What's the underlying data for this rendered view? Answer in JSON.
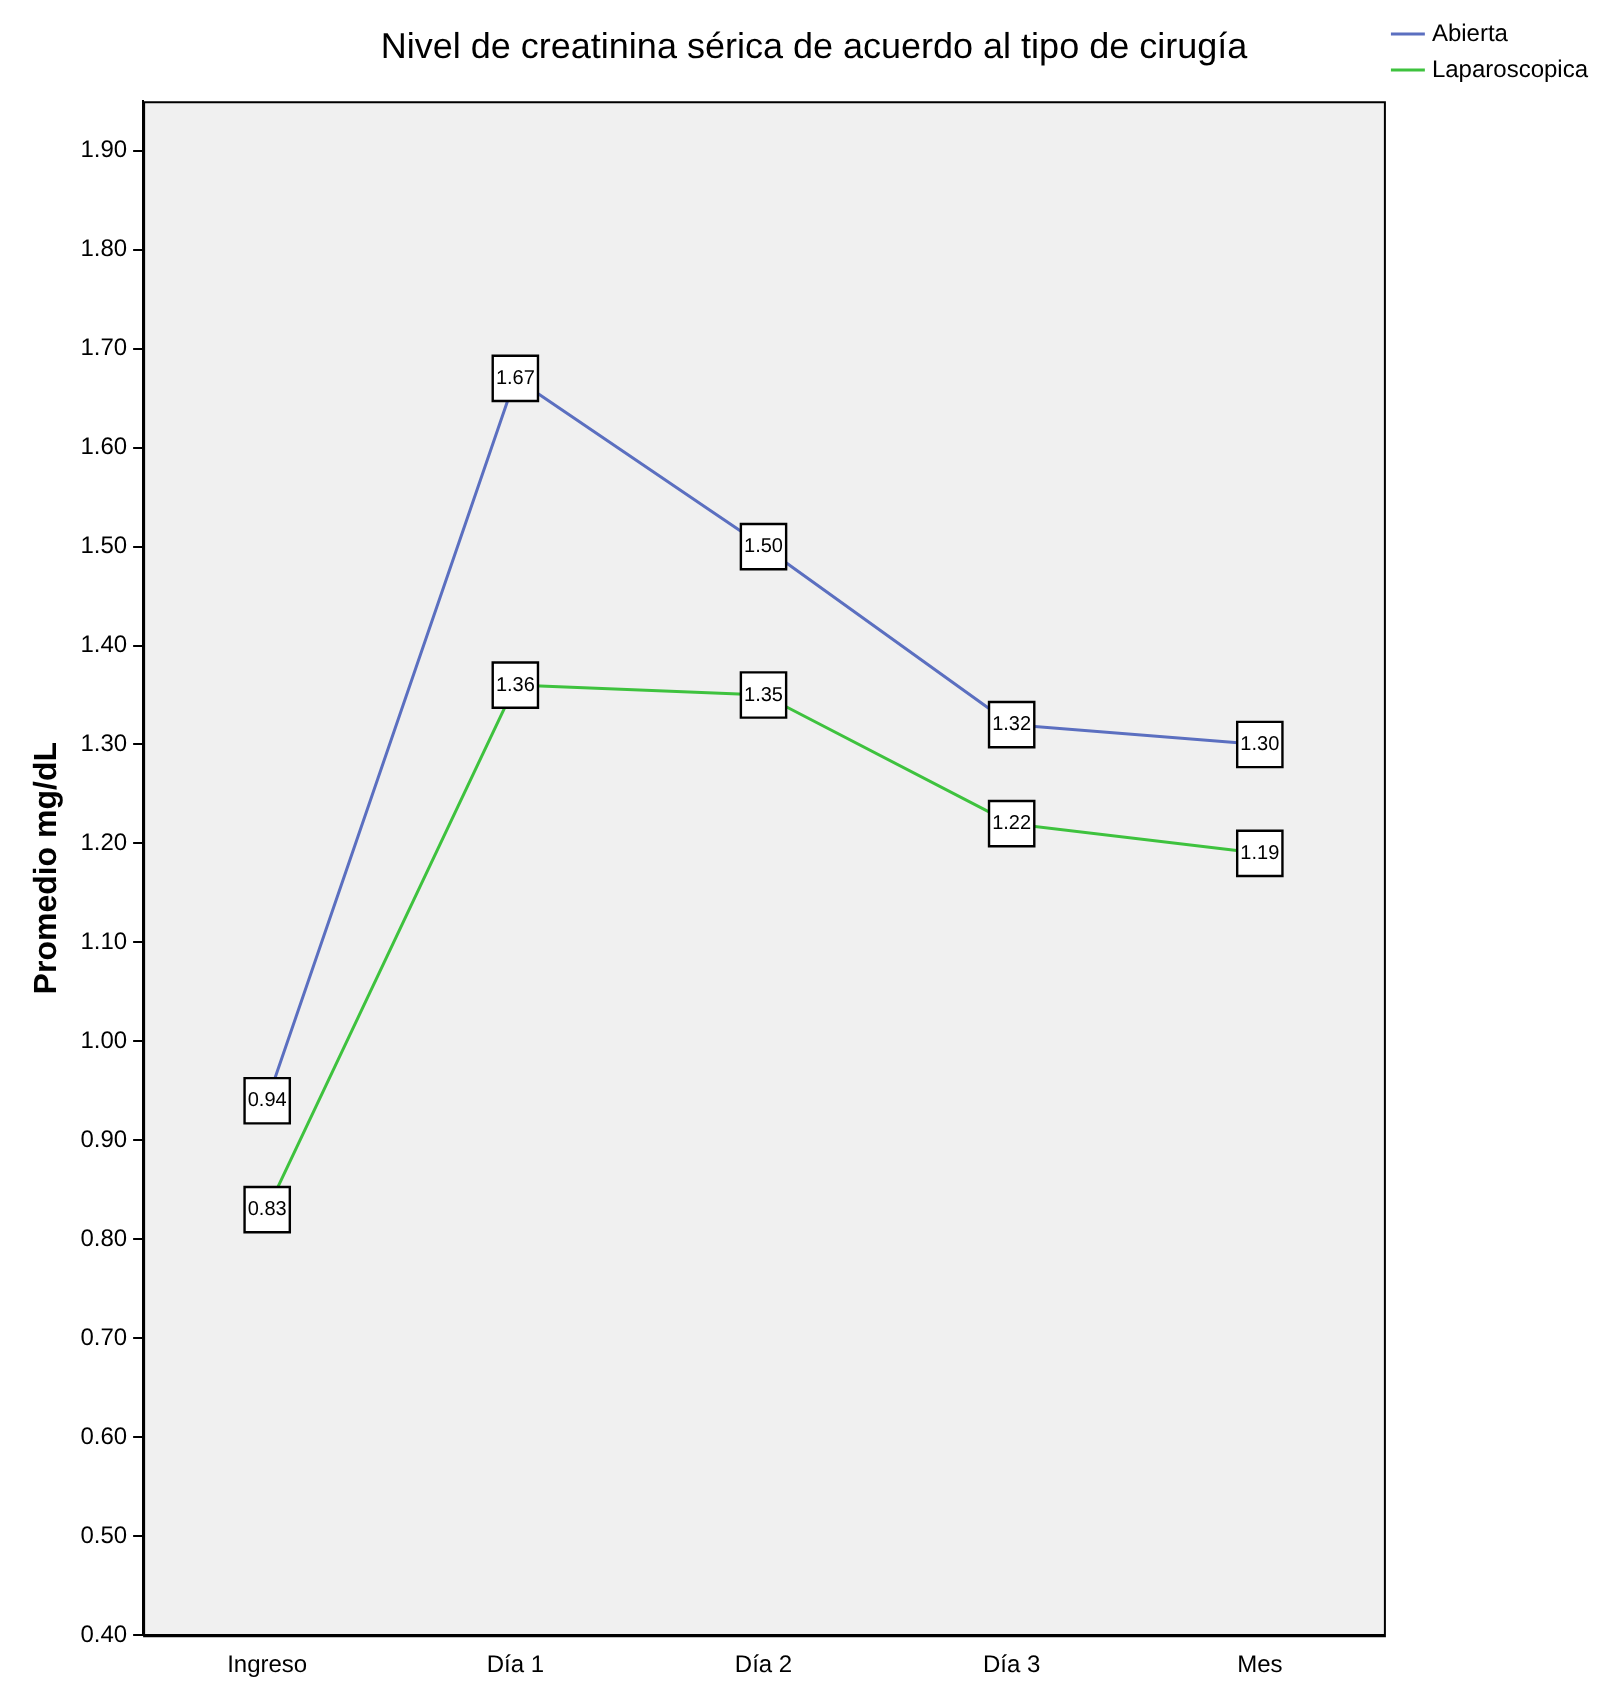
{
  "chart_data": {
    "type": "line",
    "title": "Nivel de creatinina sérica de acuerdo al tipo de cirugía",
    "ylabel": "Promedio mg/dL",
    "categories": [
      "Ingreso",
      "Día 1",
      "Día 2",
      "Día 3",
      "Mes"
    ],
    "series": [
      {
        "name": "Abierta",
        "color": "#5b6fc0",
        "values": [
          0.94,
          1.67,
          1.5,
          1.32,
          1.3
        ],
        "value_labels": [
          "0.94",
          "1.67",
          "1.50",
          "1.32",
          "1.30"
        ]
      },
      {
        "name": "Laparoscopica",
        "color": "#3ec23e",
        "values": [
          0.83,
          1.36,
          1.35,
          1.22,
          1.19
        ],
        "value_labels": [
          "0.83",
          "1.36",
          "1.35",
          "1.22",
          "1.19"
        ]
      }
    ],
    "ylim": [
      0.4,
      1.95
    ],
    "yticks": [
      {
        "value": 0.4,
        "label": "0.40"
      },
      {
        "value": 0.5,
        "label": "0.50"
      },
      {
        "value": 0.6,
        "label": "0.60"
      },
      {
        "value": 0.7,
        "label": "0.70"
      },
      {
        "value": 0.8,
        "label": "0.80"
      },
      {
        "value": 0.9,
        "label": "0.90"
      },
      {
        "value": 1.0,
        "label": "1.00"
      },
      {
        "value": 1.1,
        "label": "1.10"
      },
      {
        "value": 1.2,
        "label": "1.20"
      },
      {
        "value": 1.3,
        "label": "1.30"
      },
      {
        "value": 1.4,
        "label": "1.40"
      },
      {
        "value": 1.5,
        "label": "1.50"
      },
      {
        "value": 1.6,
        "label": "1.60"
      },
      {
        "value": 1.7,
        "label": "1.70"
      },
      {
        "value": 1.8,
        "label": "1.80"
      },
      {
        "value": 1.9,
        "label": "1.90"
      }
    ],
    "grid": false,
    "legend": "top right",
    "marker": "square",
    "line_style": "solid"
  }
}
